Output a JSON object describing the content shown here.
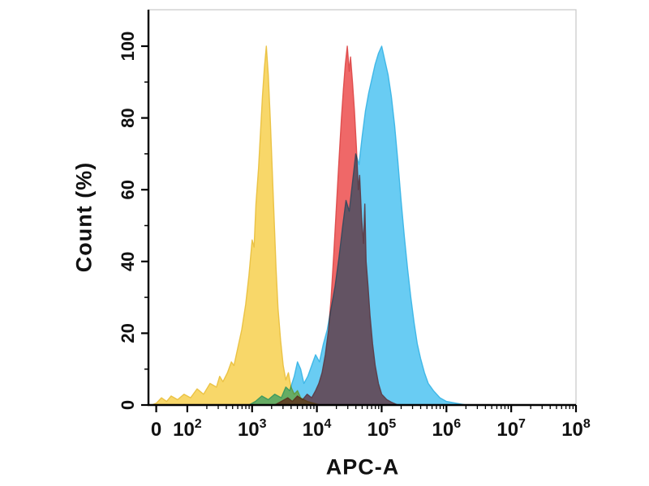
{
  "chart_data": {
    "type": "area",
    "subtype": "flow-cytometry-histogram-overlay",
    "title": "",
    "xlabel": "APC-A",
    "ylabel": "Count  (%)",
    "x_scale": "log10",
    "x_unit_note": "points given as [log10(APC-A), percent-of-max]",
    "ylim": [
      0,
      100
    ],
    "y_ticks": [
      0,
      20,
      40,
      60,
      80,
      100
    ],
    "y_minor_ticks": [
      10,
      30,
      50,
      70,
      90
    ],
    "x_ticks": [
      {
        "label": "0",
        "exp": "",
        "u": 1.52
      },
      {
        "label": "10",
        "exp": "2",
        "u": 2
      },
      {
        "label": "10",
        "exp": "3",
        "u": 3
      },
      {
        "label": "10",
        "exp": "4",
        "u": 4
      },
      {
        "label": "10",
        "exp": "5",
        "u": 5
      },
      {
        "label": "10",
        "exp": "6",
        "u": 6
      },
      {
        "label": "10",
        "exp": "7",
        "u": 7
      },
      {
        "label": "10",
        "exp": "8",
        "u": 8
      }
    ],
    "series": [
      {
        "name": "yellow",
        "peak_x_log10": 3.22,
        "peak_y": 100,
        "fill": "#f7d45e",
        "stroke": "#e9bf3c",
        "points": [
          [
            1.45,
            0
          ],
          [
            1.52,
            0.5
          ],
          [
            1.6,
            2
          ],
          [
            1.68,
            1
          ],
          [
            1.75,
            2.5
          ],
          [
            1.85,
            1.5
          ],
          [
            1.95,
            3
          ],
          [
            2.05,
            2
          ],
          [
            2.15,
            4.5
          ],
          [
            2.25,
            3
          ],
          [
            2.35,
            6
          ],
          [
            2.45,
            5
          ],
          [
            2.5,
            8
          ],
          [
            2.55,
            6.5
          ],
          [
            2.62,
            9
          ],
          [
            2.68,
            12
          ],
          [
            2.72,
            11
          ],
          [
            2.78,
            16
          ],
          [
            2.84,
            21
          ],
          [
            2.9,
            28
          ],
          [
            2.95,
            36
          ],
          [
            3.0,
            46
          ],
          [
            3.03,
            44
          ],
          [
            3.06,
            56
          ],
          [
            3.1,
            66
          ],
          [
            3.13,
            76
          ],
          [
            3.16,
            86
          ],
          [
            3.19,
            94
          ],
          [
            3.22,
            100
          ],
          [
            3.25,
            92
          ],
          [
            3.28,
            80
          ],
          [
            3.31,
            66
          ],
          [
            3.34,
            52
          ],
          [
            3.37,
            38
          ],
          [
            3.4,
            27
          ],
          [
            3.44,
            18
          ],
          [
            3.48,
            11
          ],
          [
            3.52,
            7
          ],
          [
            3.56,
            9
          ],
          [
            3.6,
            5
          ],
          [
            3.65,
            3
          ],
          [
            3.7,
            4
          ],
          [
            3.75,
            2
          ],
          [
            3.85,
            1
          ],
          [
            3.95,
            0.5
          ],
          [
            4.05,
            0
          ]
        ]
      },
      {
        "name": "red",
        "peak_x_log10": 4.47,
        "peak_y": 100,
        "fill": "#ee5c5c",
        "stroke": "#dd4747",
        "points": [
          [
            3.35,
            0
          ],
          [
            3.45,
            1
          ],
          [
            3.55,
            2
          ],
          [
            3.62,
            1
          ],
          [
            3.7,
            2.5
          ],
          [
            3.78,
            1.5
          ],
          [
            3.85,
            3
          ],
          [
            3.92,
            2
          ],
          [
            3.98,
            4
          ],
          [
            4.03,
            6
          ],
          [
            4.08,
            9
          ],
          [
            4.13,
            14
          ],
          [
            4.18,
            21
          ],
          [
            4.22,
            30
          ],
          [
            4.26,
            42
          ],
          [
            4.3,
            55
          ],
          [
            4.34,
            68
          ],
          [
            4.38,
            80
          ],
          [
            4.41,
            88
          ],
          [
            4.44,
            95
          ],
          [
            4.47,
            100
          ],
          [
            4.5,
            93
          ],
          [
            4.52,
            97
          ],
          [
            4.55,
            90
          ],
          [
            4.58,
            82
          ],
          [
            4.61,
            72
          ],
          [
            4.64,
            60
          ],
          [
            4.66,
            64
          ],
          [
            4.69,
            52
          ],
          [
            4.72,
            45
          ],
          [
            4.74,
            56
          ],
          [
            4.76,
            40
          ],
          [
            4.79,
            33
          ],
          [
            4.82,
            25
          ],
          [
            4.86,
            17
          ],
          [
            4.9,
            11
          ],
          [
            4.95,
            6
          ],
          [
            5.0,
            3
          ],
          [
            5.08,
            1.5
          ],
          [
            5.15,
            0.8
          ],
          [
            5.25,
            0
          ]
        ]
      },
      {
        "name": "blue",
        "peak_x_log10": 5.0,
        "peak_y": 100,
        "fill": "#5ec8f2",
        "stroke": "#36b4e6",
        "points": [
          [
            2.95,
            0
          ],
          [
            3.05,
            1
          ],
          [
            3.15,
            2.5
          ],
          [
            3.25,
            1.5
          ],
          [
            3.35,
            3
          ],
          [
            3.45,
            2
          ],
          [
            3.52,
            5
          ],
          [
            3.58,
            4
          ],
          [
            3.65,
            8
          ],
          [
            3.7,
            12
          ],
          [
            3.75,
            10
          ],
          [
            3.8,
            6
          ],
          [
            3.86,
            8
          ],
          [
            3.92,
            11
          ],
          [
            3.98,
            14
          ],
          [
            4.04,
            12
          ],
          [
            4.1,
            17
          ],
          [
            4.16,
            21
          ],
          [
            4.22,
            27
          ],
          [
            4.28,
            33
          ],
          [
            4.34,
            41
          ],
          [
            4.4,
            50
          ],
          [
            4.45,
            57
          ],
          [
            4.5,
            54
          ],
          [
            4.55,
            62
          ],
          [
            4.6,
            70
          ],
          [
            4.65,
            67
          ],
          [
            4.7,
            75
          ],
          [
            4.75,
            82
          ],
          [
            4.8,
            87
          ],
          [
            4.85,
            91
          ],
          [
            4.9,
            95
          ],
          [
            4.95,
            98
          ],
          [
            5.0,
            100
          ],
          [
            5.05,
            96
          ],
          [
            5.1,
            92
          ],
          [
            5.15,
            86
          ],
          [
            5.2,
            78
          ],
          [
            5.25,
            68
          ],
          [
            5.3,
            57
          ],
          [
            5.35,
            47
          ],
          [
            5.4,
            38
          ],
          [
            5.45,
            30
          ],
          [
            5.5,
            23
          ],
          [
            5.55,
            17
          ],
          [
            5.6,
            13
          ],
          [
            5.66,
            9
          ],
          [
            5.72,
            6
          ],
          [
            5.8,
            4
          ],
          [
            5.9,
            2
          ],
          [
            6.0,
            1
          ],
          [
            6.15,
            0.5
          ],
          [
            6.3,
            0
          ]
        ]
      }
    ],
    "legend": null,
    "grid": false,
    "frame_color": "#c8c8c8",
    "axis_color": "#000000"
  }
}
